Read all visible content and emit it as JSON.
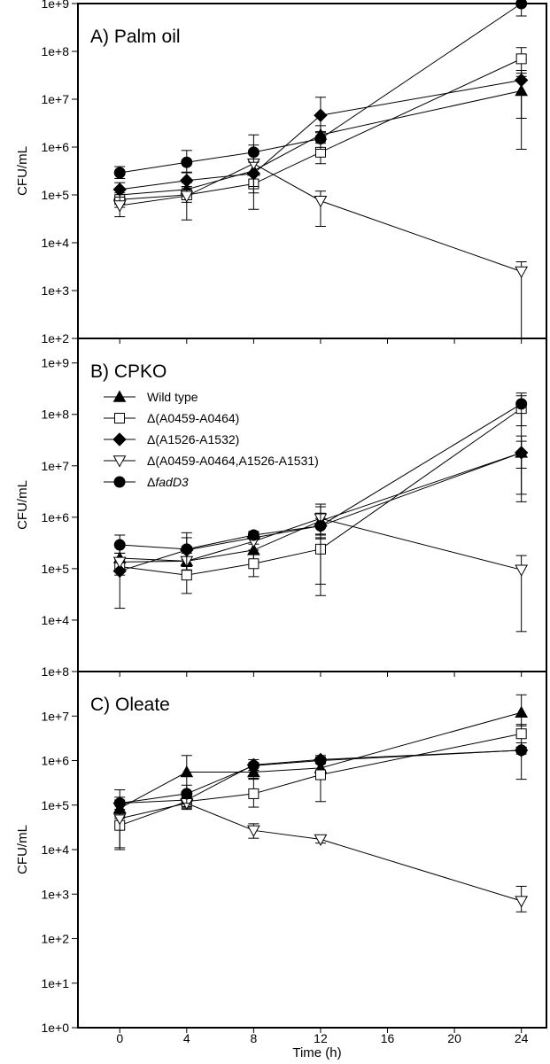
{
  "xlabel": "Time (h)",
  "x_ticks": [
    "0",
    "4",
    "8",
    "12",
    "16",
    "20",
    "24"
  ],
  "legend": [
    {
      "label": "Wild type",
      "marker": "triangle-up-filled"
    },
    {
      "label": "Δ(A0459-A0464)",
      "marker": "square-open"
    },
    {
      "label": "Δ(A1526-A1532)",
      "marker": "diamond-filled"
    },
    {
      "label": "Δ(A0459-A0464,A1526-A1531)",
      "marker": "triangle-down-open"
    },
    {
      "label_prefix": "Δ",
      "label_italic": "fadD3",
      "marker": "circle-filled"
    }
  ],
  "chart_data": [
    {
      "type": "line",
      "title": "A) Palm oil",
      "ylabel": "CFU/mL",
      "yscale": "log",
      "ylim": [
        100,
        1000000000
      ],
      "y_ticks": [
        "1e+2",
        "1e+3",
        "1e+4",
        "1e+5",
        "1e+6",
        "1e+7",
        "1e+8",
        "1e+9"
      ],
      "x": [
        0,
        4,
        8,
        12,
        24
      ],
      "xlim": [
        -2.5,
        25.5
      ],
      "series": [
        {
          "name": "Wild type",
          "values": [
            100000,
            130000,
            320000,
            1800000,
            15000000
          ],
          "err_up": [
            130000,
            180000,
            500000,
            2800000,
            30000000
          ],
          "err_down": [
            75000,
            90000,
            200000,
            1200000,
            4000000
          ]
        },
        {
          "name": "Δ(A0459-A0464)",
          "values": [
            80000,
            100000,
            170000,
            780000,
            70000000
          ],
          "err_up": [
            110000,
            140000,
            260000,
            1300000,
            120000000
          ],
          "err_down": [
            55000,
            70000,
            110000,
            450000,
            35000000
          ]
        },
        {
          "name": "Δ(A1526-A1532)",
          "values": [
            130000,
            200000,
            280000,
            4600000,
            25000000
          ],
          "err_up": [
            180000,
            300000,
            500000,
            11000000,
            40000000
          ],
          "err_down": [
            90000,
            130000,
            150000,
            2000000,
            900000
          ]
        },
        {
          "name": "Δ(A0459-A0464,A1526-A1531)",
          "values": [
            60000,
            95000,
            450000,
            75000,
            2500
          ],
          "err_up": [
            90000,
            150000,
            1100000,
            120000,
            4000
          ],
          "err_down": [
            35000,
            30000,
            50000,
            22000,
            100
          ]
        },
        {
          "name": "ΔfadD3",
          "values": [
            290000,
            480000,
            780000,
            1500000,
            1000000000
          ],
          "err_up": [
            390000,
            850000,
            1800000,
            2100000,
            1800000000
          ],
          "err_down": [
            220000,
            290000,
            480000,
            900000,
            550000000
          ]
        }
      ]
    },
    {
      "type": "line",
      "title": "B) CPKO",
      "ylabel": "CFU/mL",
      "yscale": "log",
      "ylim": [
        1000,
        3000000000
      ],
      "y_ticks": [
        "1e+4",
        "1e+5",
        "1e+6",
        "1e+7",
        "1e+8",
        "1e+9"
      ],
      "x": [
        0,
        4,
        8,
        12,
        24
      ],
      "xlim": [
        -2.5,
        25.5
      ],
      "series": [
        {
          "name": "Wild type",
          "values": [
            160000,
            140000,
            230000,
            850000,
            18000000
          ],
          "err_up": [
            300000,
            270000,
            420000,
            1600000,
            38000000
          ],
          "err_down": [
            100000,
            90000,
            140000,
            450000,
            9000000
          ]
        },
        {
          "name": "Δ(A0459-A0464)",
          "values": [
            110000,
            75000,
            125000,
            240000,
            130000000
          ],
          "err_up": [
            150000,
            110000,
            190000,
            380000,
            230000000
          ],
          "err_down": [
            75000,
            33000,
            70000,
            30000,
            60000000
          ]
        },
        {
          "name": "Δ(A1526-A1532)",
          "values": [
            90000,
            230000,
            400000,
            680000,
            18000000
          ],
          "err_up": [
            130000,
            400000,
            530000,
            950000,
            30000000
          ],
          "err_down": [
            17000,
            150000,
            300000,
            470000,
            2000000
          ]
        },
        {
          "name": "Δ(A0459-A0464,A1526-A1531)",
          "values": [
            135000,
            140000,
            340000,
            950000,
            95000
          ],
          "err_up": [
            200000,
            200000,
            480000,
            1800000,
            180000
          ],
          "err_down": [
            90000,
            95000,
            230000,
            50000,
            6000
          ]
        },
        {
          "name": "ΔfadD3",
          "values": [
            290000,
            240000,
            450000,
            680000,
            160000000
          ],
          "err_up": [
            450000,
            500000,
            520000,
            1200000,
            260000000
          ],
          "err_down": [
            200000,
            110000,
            380000,
            400000,
            2800000
          ]
        }
      ]
    },
    {
      "type": "line",
      "title": "C) Oleate",
      "ylabel": "CFU/mL",
      "yscale": "log",
      "ylim": [
        1,
        100000000
      ],
      "y_ticks": [
        "1e+0",
        "1e+1",
        "1e+2",
        "1e+3",
        "1e+4",
        "1e+5",
        "1e+6",
        "1e+7",
        "1e+8"
      ],
      "x": [
        0,
        4,
        8,
        12,
        24
      ],
      "xlim": [
        -2.5,
        25.5
      ],
      "series": [
        {
          "name": "Wild type",
          "values": [
            85000,
            550000,
            550000,
            680000,
            12000000
          ],
          "err_up": [
            130000,
            1300000,
            800000,
            900000,
            30000000
          ],
          "err_down": [
            55000,
            200000,
            380000,
            500000,
            6000000
          ]
        },
        {
          "name": "Δ(A0459-A0464)",
          "values": [
            35000,
            120000,
            180000,
            480000,
            4000000
          ],
          "err_up": [
            50000,
            170000,
            400000,
            1000000,
            6500000
          ],
          "err_down": [
            10000,
            80000,
            90000,
            120000,
            2000000
          ]
        },
        {
          "name": "Δ(A1526-A1532)",
          "values": [
            110000,
            130000,
            800000,
            1050000,
            1700000
          ],
          "err_up": [
            150000,
            180000,
            1050000,
            1300000,
            2500000
          ],
          "err_down": [
            80000,
            90000,
            600000,
            850000,
            380000
          ]
        },
        {
          "name": "Δ(A0459-A0464,A1526-A1531)",
          "values": [
            50000,
            110000,
            27000,
            17000,
            700
          ],
          "err_up": [
            70000,
            140000,
            38000,
            21000,
            1500
          ],
          "err_down": [
            11000,
            85000,
            18000,
            14000,
            400
          ]
        },
        {
          "name": "ΔfadD3",
          "values": [
            110000,
            180000,
            770000,
            1000000,
            1700000
          ],
          "err_up": [
            220000,
            280000,
            900000,
            1200000,
            2000000
          ],
          "err_down": [
            60000,
            110000,
            600000,
            850000,
            1400000
          ]
        }
      ]
    }
  ]
}
